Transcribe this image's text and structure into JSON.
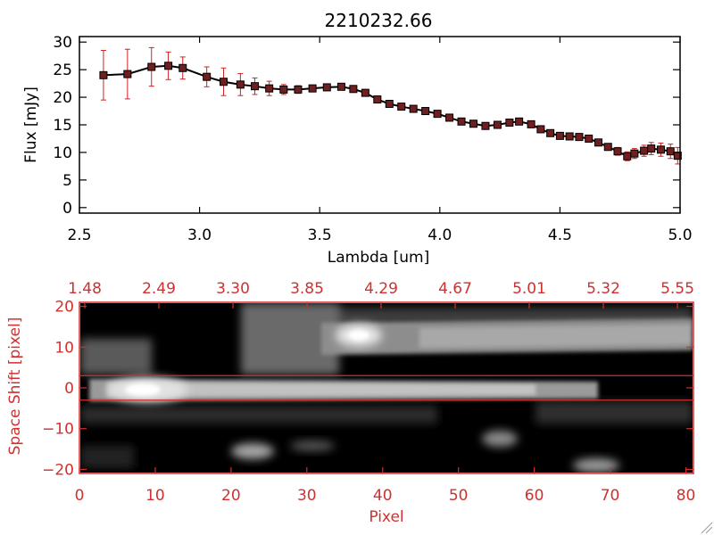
{
  "colors": {
    "axis": "#000000",
    "accent": "#d32f2f",
    "marker": "#6e1f1f",
    "error_bar": "#cc2222",
    "background": "#ffffff",
    "image_background": "#000000"
  },
  "chart_data": [
    {
      "type": "line",
      "title": "2210232.66",
      "xlabel": "Lambda [um]",
      "ylabel": "Flux [mJy]",
      "xlim": [
        2.5,
        5.0
      ],
      "ylim": [
        -1,
        31
      ],
      "xticks": [
        2.5,
        3.0,
        3.5,
        4.0,
        4.5,
        5.0
      ],
      "xtick_labels": [
        "2.5",
        "3.0",
        "3.5",
        "4.0",
        "4.5",
        "5.0"
      ],
      "yticks": [
        0,
        5,
        10,
        15,
        20,
        25,
        30
      ],
      "ytick_labels": [
        "0",
        "5",
        "10",
        "15",
        "20",
        "25",
        "30"
      ],
      "grid": false,
      "series": [
        {
          "x": [
            2.6,
            2.7,
            2.8,
            2.87,
            2.93,
            3.03,
            3.1,
            3.17,
            3.23,
            3.29,
            3.35,
            3.41,
            3.47,
            3.53,
            3.59,
            3.64,
            3.69,
            3.74,
            3.79,
            3.84,
            3.89,
            3.94,
            3.99,
            4.04,
            4.09,
            4.14,
            4.19,
            4.24,
            4.29,
            4.33,
            4.38,
            4.42,
            4.46,
            4.5,
            4.54,
            4.58,
            4.62,
            4.66,
            4.7,
            4.74,
            4.78,
            4.81,
            4.85,
            4.88,
            4.92,
            4.96,
            4.99
          ],
          "y": [
            24,
            24.2,
            25.5,
            25.7,
            25.3,
            23.7,
            22.8,
            22.3,
            22.0,
            21.6,
            21.4,
            21.4,
            21.6,
            21.8,
            21.9,
            21.5,
            20.8,
            19.6,
            18.8,
            18.3,
            17.9,
            17.5,
            17.0,
            16.3,
            15.6,
            15.2,
            14.8,
            15.0,
            15.4,
            15.6,
            15.1,
            14.2,
            13.5,
            13.0,
            12.9,
            12.8,
            12.5,
            11.8,
            11.0,
            10.2,
            9.3,
            9.8,
            10.3,
            10.7,
            10.5,
            10.2,
            9.4
          ],
          "yerr": [
            4.5,
            4.5,
            3.5,
            2.5,
            2.0,
            1.8,
            2.5,
            2.0,
            1.5,
            1.3,
            0.9,
            0.7,
            0.6,
            0.6,
            0.6,
            0.5,
            0.5,
            0.4,
            0.4,
            0.4,
            0.4,
            0.4,
            0.4,
            0.4,
            0.4,
            0.4,
            0.4,
            0.4,
            0.5,
            0.5,
            0.5,
            0.5,
            0.5,
            0.5,
            0.5,
            0.5,
            0.5,
            0.5,
            0.6,
            0.7,
            0.8,
            0.9,
            1.0,
            1.1,
            1.2,
            1.3,
            1.5
          ]
        }
      ]
    },
    {
      "type": "heatmap",
      "xlabel": "Pixel",
      "ylabel": "Space Shift [pixel]",
      "xlim": [
        0,
        81
      ],
      "ylim": [
        -21,
        21
      ],
      "xticks": [
        0,
        10,
        20,
        30,
        40,
        50,
        60,
        70,
        80
      ],
      "xtick_labels": [
        "0",
        "10",
        "20",
        "30",
        "40",
        "50",
        "60",
        "70",
        "80"
      ],
      "yticks": [
        -20,
        -10,
        0,
        10,
        20
      ],
      "ytick_labels": [
        "−20",
        "−10",
        "0",
        "10",
        "20"
      ],
      "top_axis_labels": [
        "1.48",
        "2.49",
        "3.30",
        "3.85",
        "4.29",
        "4.67",
        "5.01",
        "5.32",
        "5.55"
      ],
      "extraction_aperture": [
        -3,
        3
      ],
      "grid": false
    }
  ]
}
